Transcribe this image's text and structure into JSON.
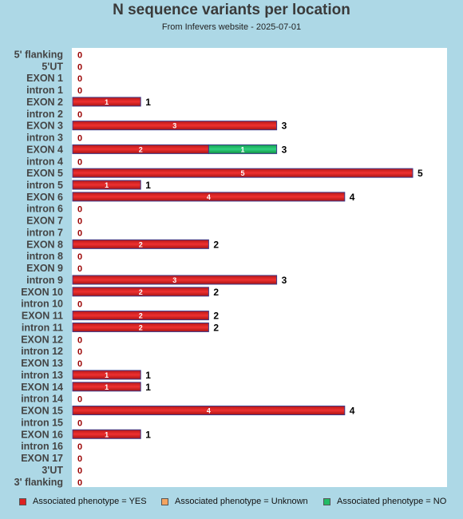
{
  "title": "N sequence variants per location",
  "subtitle": "From Infevers website - 2025-07-01",
  "colors": {
    "yes": "#dd2222",
    "unknown": "#f4a460",
    "no": "#22bb66",
    "zero_label": "#990000",
    "plot_bg": "#ffffff",
    "page_bg": "#add8e6"
  },
  "legend": [
    {
      "label": "Associated phenotype = YES",
      "color_key": "yes"
    },
    {
      "label": "Associated phenotype = Unknown",
      "color_key": "unknown"
    },
    {
      "label": "Associated phenotype = NO",
      "color_key": "no"
    }
  ],
  "chart_data": {
    "type": "bar",
    "orientation": "horizontal",
    "stacked": true,
    "title": "N sequence variants per location",
    "subtitle": "From Infevers website - 2025-07-01",
    "xlim": [
      0,
      5
    ],
    "categories": [
      "5' flanking",
      "5'UT",
      "EXON 1",
      "intron 1",
      "EXON 2",
      "intron 2",
      "EXON 3",
      "intron 3",
      "EXON 4",
      "intron 4",
      "EXON 5",
      "intron 5",
      "EXON 6",
      "intron 6",
      "EXON 7",
      "intron 7",
      "EXON 8",
      "intron 8",
      "EXON 9",
      "intron 9",
      "EXON 10",
      "intron 10",
      "EXON 11",
      "intron 11",
      "EXON 12",
      "intron 12",
      "EXON 13",
      "intron 13",
      "EXON 14",
      "intron 14",
      "EXON 15",
      "intron 15",
      "EXON 16",
      "intron 16",
      "EXON 17",
      "3'UT",
      "3' flanking"
    ],
    "series": [
      {
        "name": "Associated phenotype = YES",
        "color_key": "yes",
        "values": [
          0,
          0,
          0,
          0,
          1,
          0,
          3,
          0,
          2,
          0,
          5,
          1,
          4,
          0,
          0,
          0,
          2,
          0,
          0,
          3,
          2,
          0,
          2,
          2,
          0,
          0,
          0,
          1,
          1,
          0,
          4,
          0,
          1,
          0,
          0,
          0,
          0
        ]
      },
      {
        "name": "Associated phenotype = Unknown",
        "color_key": "unknown",
        "values": [
          0,
          0,
          0,
          0,
          0,
          0,
          0,
          0,
          0,
          0,
          0,
          0,
          0,
          0,
          0,
          0,
          0,
          0,
          0,
          0,
          0,
          0,
          0,
          0,
          0,
          0,
          0,
          0,
          0,
          0,
          0,
          0,
          0,
          0,
          0,
          0,
          0
        ]
      },
      {
        "name": "Associated phenotype = NO",
        "color_key": "no",
        "values": [
          0,
          0,
          0,
          0,
          0,
          0,
          0,
          0,
          1,
          0,
          0,
          0,
          0,
          0,
          0,
          0,
          0,
          0,
          0,
          0,
          0,
          0,
          0,
          0,
          0,
          0,
          0,
          0,
          0,
          0,
          0,
          0,
          0,
          0,
          0,
          0,
          0
        ]
      }
    ],
    "totals": [
      0,
      0,
      0,
      0,
      1,
      0,
      3,
      0,
      3,
      0,
      5,
      1,
      4,
      0,
      0,
      0,
      2,
      0,
      0,
      3,
      2,
      0,
      2,
      2,
      0,
      0,
      0,
      1,
      1,
      0,
      4,
      0,
      1,
      0,
      0,
      0,
      0
    ],
    "grid": false,
    "legend_position": "bottom"
  }
}
